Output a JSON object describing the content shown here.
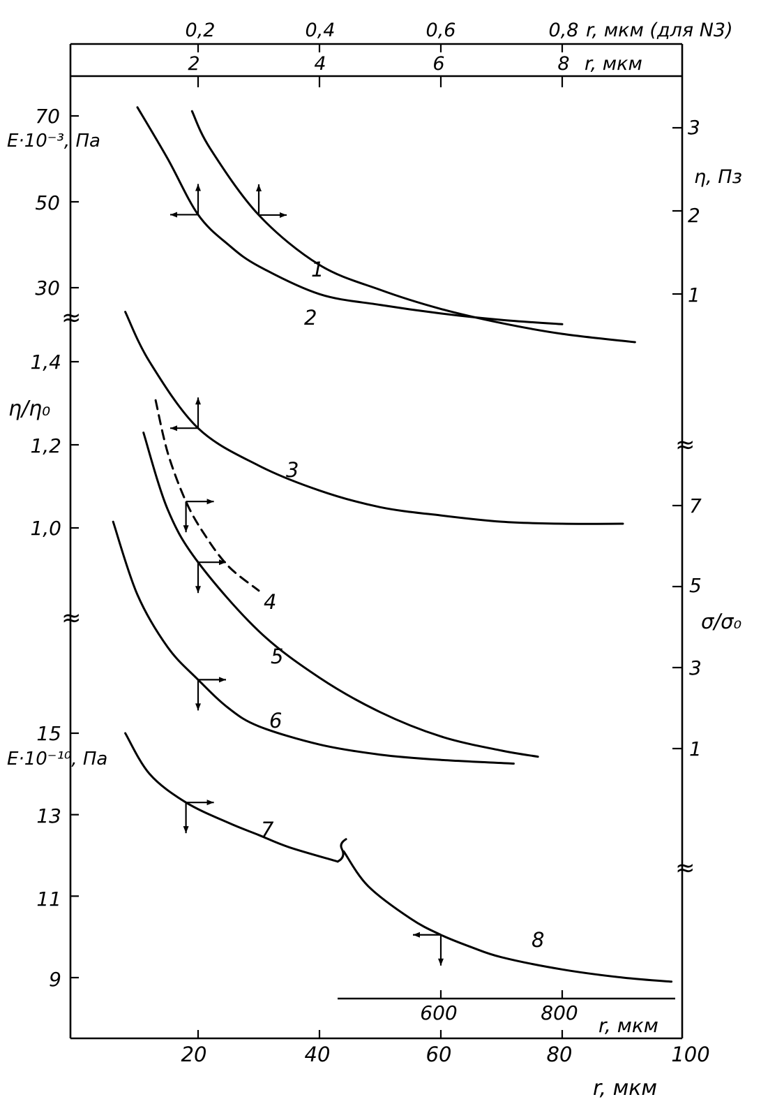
{
  "chart_data": {
    "type": "line",
    "x_axes": {
      "bottom": {
        "label": "r, мкм",
        "ticks": [
          "20",
          "40",
          "60",
          "80",
          "100"
        ],
        "range": [
          0,
          100
        ]
      },
      "top": {
        "label": "r, мкм",
        "ticks": [
          "2",
          "4",
          "6",
          "8"
        ],
        "range": [
          0,
          10
        ]
      },
      "top_outer": {
        "label": "r, мкм (для N3)",
        "ticks": [
          "0,2",
          "0,4",
          "0,6",
          "0,8"
        ],
        "range": [
          0,
          1
        ]
      },
      "bottom_inner": {
        "label": "r, мкм",
        "ticks": [
          "600",
          "800"
        ],
        "range": [
          0,
          1000
        ]
      }
    },
    "y_axes": {
      "left_top": {
        "label": "E·10⁻³, Па",
        "ticks": [
          "70",
          "50",
          "30"
        ]
      },
      "left_middle": {
        "label": "η/η₀",
        "ticks": [
          "1,4",
          "1,2",
          "1,0"
        ]
      },
      "left_bottom": {
        "label": "E·10⁻¹⁰, Па",
        "ticks": [
          "15",
          "13",
          "11",
          "9"
        ]
      },
      "right_top": {
        "label": "η, Пз",
        "ticks": [
          "3",
          "2",
          "1"
        ]
      },
      "right_middle": {
        "label": "σ/σ₀",
        "ticks": [
          "7",
          "5",
          "3",
          "1"
        ]
      }
    },
    "series": [
      {
        "name": "1",
        "axes": [
          "top",
          "right_top"
        ],
        "x": [
          1.9,
          2.2,
          3.0,
          4.0,
          5.0,
          6.0,
          7.0,
          8.0,
          9.2
        ],
        "y": [
          3.2,
          2.75,
          1.95,
          1.35,
          1.05,
          0.82,
          0.65,
          0.52,
          0.42
        ]
      },
      {
        "name": "2",
        "axes": [
          "bottom",
          "left_top"
        ],
        "x": [
          10,
          15,
          20,
          25,
          30,
          40,
          50,
          60,
          70,
          80
        ],
        "y": [
          72,
          60,
          47,
          40,
          35,
          28.5,
          26,
          24,
          22.5,
          21.5
        ]
      },
      {
        "name": "3",
        "axes": [
          "top_outer",
          "left_middle"
        ],
        "x": [
          0.08,
          0.12,
          0.2,
          0.3,
          0.4,
          0.5,
          0.6,
          0.7,
          0.8,
          0.9
        ],
        "y": [
          1.52,
          1.4,
          1.24,
          1.15,
          1.09,
          1.05,
          1.03,
          1.015,
          1.01,
          1.01
        ]
      },
      {
        "name": "4",
        "axes": [
          "bottom",
          "right_middle"
        ],
        "x": [
          13,
          15,
          18,
          21,
          25,
          30
        ],
        "y": [
          9.6,
          8.3,
          7.1,
          6.3,
          5.5,
          4.9
        ]
      },
      {
        "name": "5",
        "axes": [
          "bottom",
          "right_middle"
        ],
        "x": [
          11,
          15,
          20,
          30,
          40,
          50,
          60,
          70,
          76
        ],
        "y": [
          8.8,
          6.9,
          5.6,
          3.9,
          2.75,
          1.9,
          1.3,
          0.95,
          0.8
        ]
      },
      {
        "name": "6",
        "axes": [
          "bottom",
          "right_middle"
        ],
        "x": [
          6,
          10,
          15,
          20,
          25,
          30,
          40,
          50,
          60,
          72
        ],
        "y": [
          6.6,
          4.8,
          3.5,
          2.7,
          2.0,
          1.55,
          1.1,
          0.85,
          0.72,
          0.63
        ]
      },
      {
        "name": "7",
        "axes": [
          "bottom",
          "left_bottom"
        ],
        "x": [
          8,
          12,
          18,
          25,
          30,
          35,
          43
        ],
        "y": [
          15.0,
          14.0,
          13.3,
          12.8,
          12.5,
          12.2,
          11.85
        ]
      },
      {
        "name": "8",
        "axes": [
          "bottom_inner",
          "left_bottom"
        ],
        "x": [
          440,
          480,
          550,
          600,
          650,
          700,
          800,
          900,
          980
        ],
        "y": [
          12.1,
          11.25,
          10.45,
          10.05,
          9.75,
          9.5,
          9.2,
          9.0,
          8.9
        ]
      }
    ]
  }
}
